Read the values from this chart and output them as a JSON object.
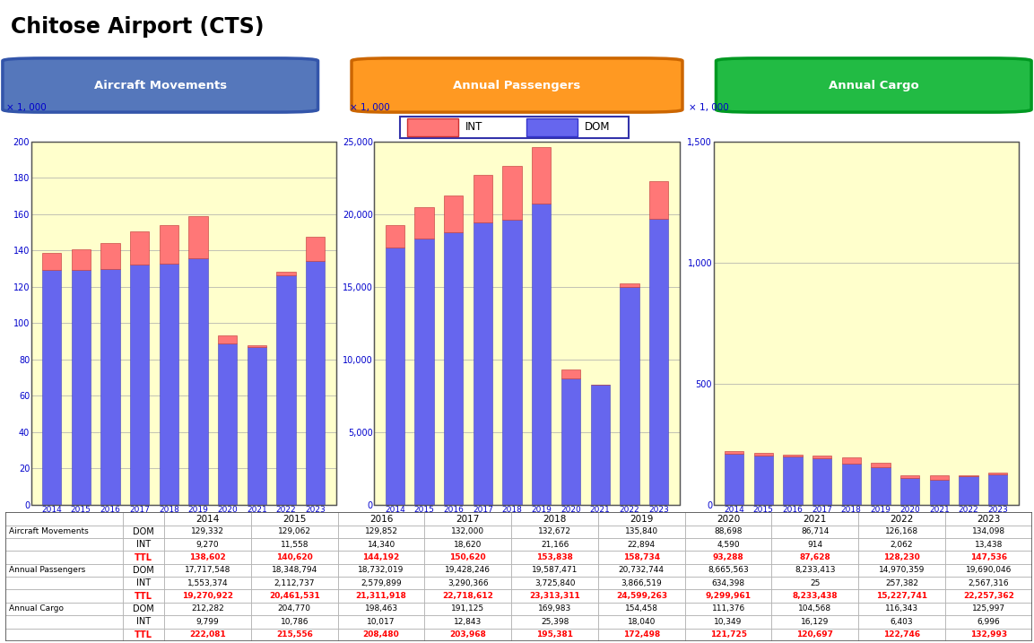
{
  "title": "Chitose Airport (CTS)",
  "years": [
    2014,
    2015,
    2016,
    2017,
    2018,
    2019,
    2020,
    2021,
    2022,
    2023
  ],
  "aircraft_movements": {
    "DOM": [
      129332,
      129062,
      129852,
      132000,
      132672,
      135840,
      88698,
      86714,
      126168,
      134098
    ],
    "INT": [
      9270,
      11558,
      14340,
      18620,
      21166,
      22894,
      4590,
      914,
      2062,
      13438
    ],
    "TTL": [
      138602,
      140620,
      144192,
      150620,
      153838,
      158734,
      93288,
      87628,
      128230,
      147536
    ]
  },
  "annual_passengers": {
    "DOM": [
      17717548,
      18348794,
      18732019,
      19428246,
      19587471,
      20732744,
      8665563,
      8233413,
      14970359,
      19690046
    ],
    "INT": [
      1553374,
      2112737,
      2579899,
      3290366,
      3725840,
      3866519,
      634398,
      25,
      257382,
      2567316
    ],
    "TTL": [
      19270922,
      20461531,
      21311918,
      22718612,
      23313311,
      24599263,
      9299961,
      8233438,
      15227741,
      22257362
    ]
  },
  "annual_cargo": {
    "DOM": [
      212282,
      204770,
      198463,
      191125,
      169983,
      154458,
      111376,
      104568,
      116343,
      125997
    ],
    "INT": [
      9799,
      10786,
      10017,
      12843,
      25398,
      18040,
      10349,
      16129,
      6403,
      6996
    ],
    "TTL": [
      222081,
      215556,
      208480,
      203968,
      195381,
      172498,
      121725,
      120697,
      122746,
      132993
    ]
  },
  "colors": {
    "dom_bar": "#6666EE",
    "int_bar": "#FF7777",
    "chart_bg": "#FFFFCC",
    "btn_aircraft_bg": "#5577BB",
    "btn_aircraft_border": "#3355AA",
    "btn_passenger_bg": "#FF9922",
    "btn_passenger_border": "#CC6600",
    "btn_cargo_bg": "#22BB44",
    "btn_cargo_border": "#009922",
    "ttl_color": "#FF0000",
    "grid_color": "#AAAAAA",
    "legend_border": "#3333AA",
    "axis_label_color": "#0000CC"
  },
  "am_yticks": [
    0,
    20,
    40,
    60,
    80,
    100,
    120,
    140,
    160,
    180,
    200
  ],
  "ap_yticks": [
    0,
    5000,
    10000,
    15000,
    20000,
    25000
  ],
  "ac_yticks": [
    0,
    500,
    1000,
    1500
  ]
}
